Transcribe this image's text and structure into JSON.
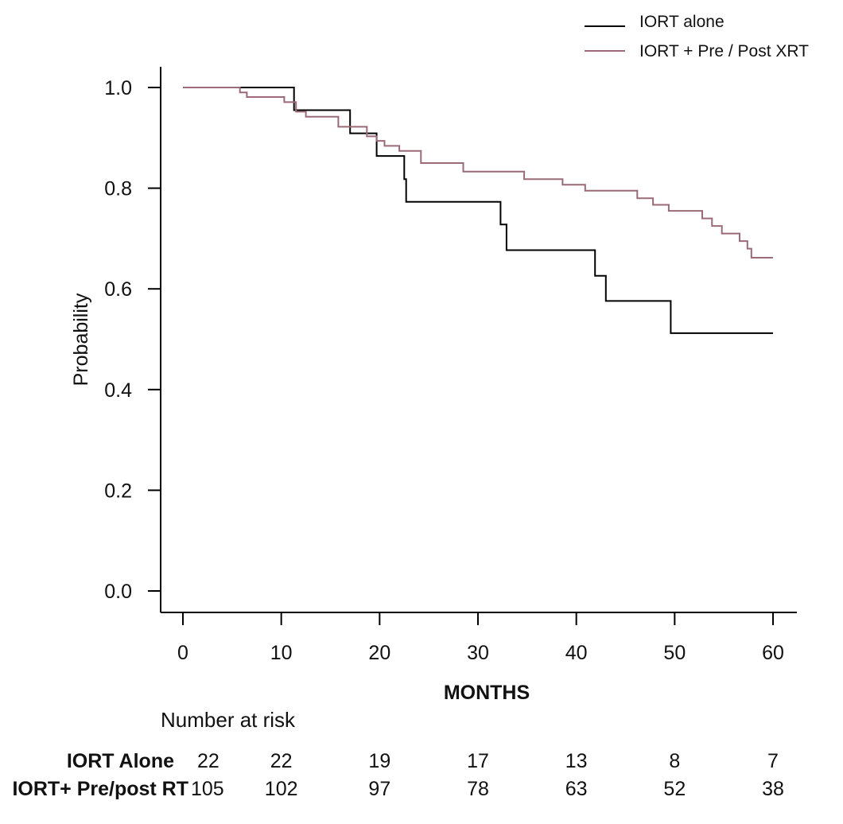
{
  "chart_data": {
    "type": "line",
    "subtype": "kaplan-meier step curve",
    "xlabel": "MONTHS",
    "ylabel": "Probability",
    "xlim": [
      0,
      60
    ],
    "ylim": [
      0,
      1
    ],
    "x_ticks": [
      0,
      10,
      20,
      30,
      40,
      50,
      60
    ],
    "y_ticks": [
      "0.0",
      "0.2",
      "0.4",
      "0.6",
      "0.8",
      "1.0"
    ],
    "y_tick_values": [
      0,
      0.2,
      0.4,
      0.6,
      0.8,
      1.0
    ],
    "grid": false,
    "legend_position": "top-right",
    "series": [
      {
        "name": "IORT alone",
        "color": "#000000",
        "x": [
          0,
          11.3,
          11.3,
          17.0,
          17.0,
          19.7,
          19.7,
          22.5,
          22.5,
          22.7,
          22.7,
          32.3,
          32.3,
          32.9,
          32.9,
          41.9,
          41.9,
          43.0,
          43.0,
          49.6,
          49.6,
          60
        ],
        "y": [
          1.0,
          1.0,
          0.955,
          0.955,
          0.909,
          0.909,
          0.864,
          0.864,
          0.818,
          0.818,
          0.773,
          0.773,
          0.728,
          0.728,
          0.677,
          0.677,
          0.626,
          0.626,
          0.576,
          0.576,
          0.512,
          0.512
        ]
      },
      {
        "name": "IORT + Pre / Post XRT",
        "color": "#9a6a76",
        "x": [
          0,
          5.8,
          5.8,
          6.5,
          6.5,
          10.3,
          10.3,
          11.5,
          11.5,
          12.5,
          12.5,
          15.8,
          15.8,
          18.7,
          18.7,
          19.7,
          19.7,
          20.5,
          20.5,
          22.0,
          22.0,
          24.2,
          24.2,
          28.5,
          28.5,
          34.7,
          34.7,
          38.6,
          38.6,
          40.9,
          40.9,
          46.2,
          46.2,
          47.8,
          47.8,
          49.4,
          49.4,
          52.8,
          52.8,
          53.8,
          53.8,
          54.8,
          54.8,
          56.6,
          56.6,
          57.4,
          57.4,
          57.8,
          57.8,
          60
        ],
        "y": [
          1.0,
          1.0,
          0.99,
          0.99,
          0.981,
          0.981,
          0.971,
          0.971,
          0.952,
          0.952,
          0.942,
          0.942,
          0.922,
          0.922,
          0.903,
          0.903,
          0.894,
          0.894,
          0.884,
          0.884,
          0.874,
          0.874,
          0.85,
          0.85,
          0.833,
          0.833,
          0.818,
          0.818,
          0.807,
          0.807,
          0.795,
          0.795,
          0.78,
          0.78,
          0.767,
          0.767,
          0.755,
          0.755,
          0.74,
          0.74,
          0.725,
          0.725,
          0.71,
          0.71,
          0.695,
          0.695,
          0.68,
          0.68,
          0.662,
          0.662
        ]
      }
    ]
  },
  "risk_table": {
    "title": "Number at risk",
    "rows": [
      {
        "label": "IORT Alone",
        "values": [
          "22",
          "22",
          "19",
          "17",
          "13",
          "8",
          "7"
        ]
      },
      {
        "label": "IORT+ Pre/post RT",
        "values": [
          "105",
          "102",
          "97",
          "78",
          "63",
          "52",
          "38"
        ]
      }
    ]
  }
}
